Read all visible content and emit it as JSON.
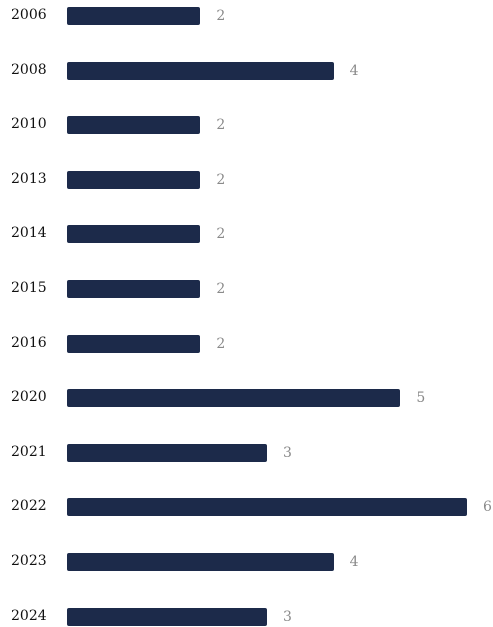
{
  "colors": {
    "bar": "#1c2a4a",
    "value_text": "#8a8a8a",
    "label_text": "#111111"
  },
  "chart_data": {
    "type": "bar",
    "orientation": "horizontal",
    "categories": [
      "2006",
      "2008",
      "2010",
      "2013",
      "2014",
      "2015",
      "2016",
      "2020",
      "2021",
      "2022",
      "2023",
      "2024"
    ],
    "values": [
      2,
      4,
      2,
      2,
      2,
      2,
      2,
      5,
      3,
      6,
      4,
      3
    ],
    "title": "",
    "xlabel": "",
    "ylabel": "",
    "xlim": [
      0,
      6
    ],
    "grid": false,
    "legend": "none",
    "data_labels": true
  }
}
